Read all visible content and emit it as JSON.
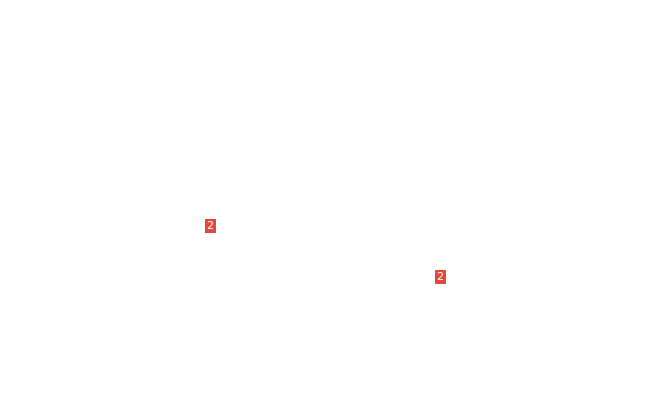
{
  "badges": [
    {
      "label": "2",
      "color": "#e8453c"
    },
    {
      "label": "2",
      "color": "#e8453c"
    }
  ]
}
